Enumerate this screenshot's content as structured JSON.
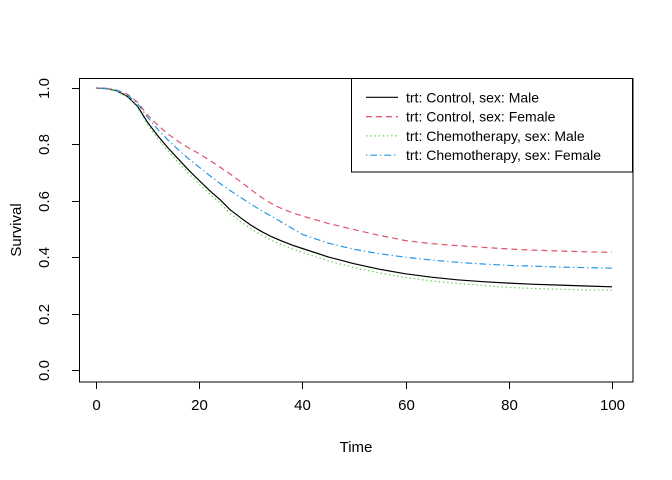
{
  "chart_data": {
    "type": "line",
    "title": "",
    "xlabel": "Time",
    "ylabel": "Survival",
    "xlim": [
      0,
      100
    ],
    "ylim": [
      0.0,
      1.0
    ],
    "x_ticks": [
      0,
      20,
      40,
      60,
      80,
      100
    ],
    "y_tick_labels": [
      "0.0",
      "0.2",
      "0.4",
      "0.6",
      "0.8",
      "1.0"
    ],
    "grid": false,
    "legend_position": "topright",
    "background": "#ffffff",
    "axis_color": "#000000",
    "x": [
      0,
      2,
      4,
      6,
      8,
      10,
      12,
      14,
      16,
      18,
      20,
      22,
      24,
      26,
      28,
      30,
      32,
      34,
      36,
      38,
      40,
      45,
      50,
      55,
      60,
      65,
      70,
      75,
      80,
      85,
      90,
      95,
      100
    ],
    "series": [
      {
        "name": "trt: Control, sex: Male",
        "color": "#000000",
        "linetype": "solid",
        "values": [
          1.0,
          0.998,
          0.99,
          0.971,
          0.936,
          0.878,
          0.83,
          0.787,
          0.747,
          0.708,
          0.672,
          0.637,
          0.605,
          0.568,
          0.54,
          0.514,
          0.492,
          0.473,
          0.457,
          0.443,
          0.431,
          0.401,
          0.377,
          0.357,
          0.341,
          0.329,
          0.32,
          0.313,
          0.308,
          0.304,
          0.301,
          0.298,
          0.295
        ]
      },
      {
        "name": "trt: Control, sex: Female",
        "color": "#DF536B",
        "linetype": "dashed",
        "values": [
          1.0,
          0.999,
          0.993,
          0.979,
          0.951,
          0.904,
          0.868,
          0.836,
          0.81,
          0.787,
          0.767,
          0.744,
          0.72,
          0.695,
          0.668,
          0.64,
          0.613,
          0.59,
          0.572,
          0.558,
          0.546,
          0.52,
          0.498,
          0.477,
          0.459,
          0.448,
          0.441,
          0.435,
          0.429,
          0.425,
          0.422,
          0.419,
          0.417
        ]
      },
      {
        "name": "trt: Chemotherapy, sex: Male",
        "color": "#61D04F",
        "linetype": "dotted",
        "values": [
          1.0,
          0.998,
          0.989,
          0.969,
          0.932,
          0.869,
          0.82,
          0.776,
          0.735,
          0.696,
          0.659,
          0.624,
          0.592,
          0.555,
          0.527,
          0.501,
          0.479,
          0.46,
          0.444,
          0.43,
          0.417,
          0.387,
          0.363,
          0.344,
          0.328,
          0.316,
          0.307,
          0.3,
          0.293,
          0.289,
          0.286,
          0.284,
          0.283
        ]
      },
      {
        "name": "trt: Chemotherapy, sex: Female",
        "color": "#2297E6",
        "linetype": "dashdot",
        "values": [
          1.0,
          0.999,
          0.992,
          0.976,
          0.946,
          0.896,
          0.853,
          0.815,
          0.78,
          0.748,
          0.719,
          0.69,
          0.662,
          0.636,
          0.612,
          0.589,
          0.566,
          0.545,
          0.524,
          0.502,
          0.481,
          0.45,
          0.428,
          0.412,
          0.4,
          0.39,
          0.382,
          0.376,
          0.371,
          0.368,
          0.365,
          0.363,
          0.361
        ]
      }
    ]
  }
}
